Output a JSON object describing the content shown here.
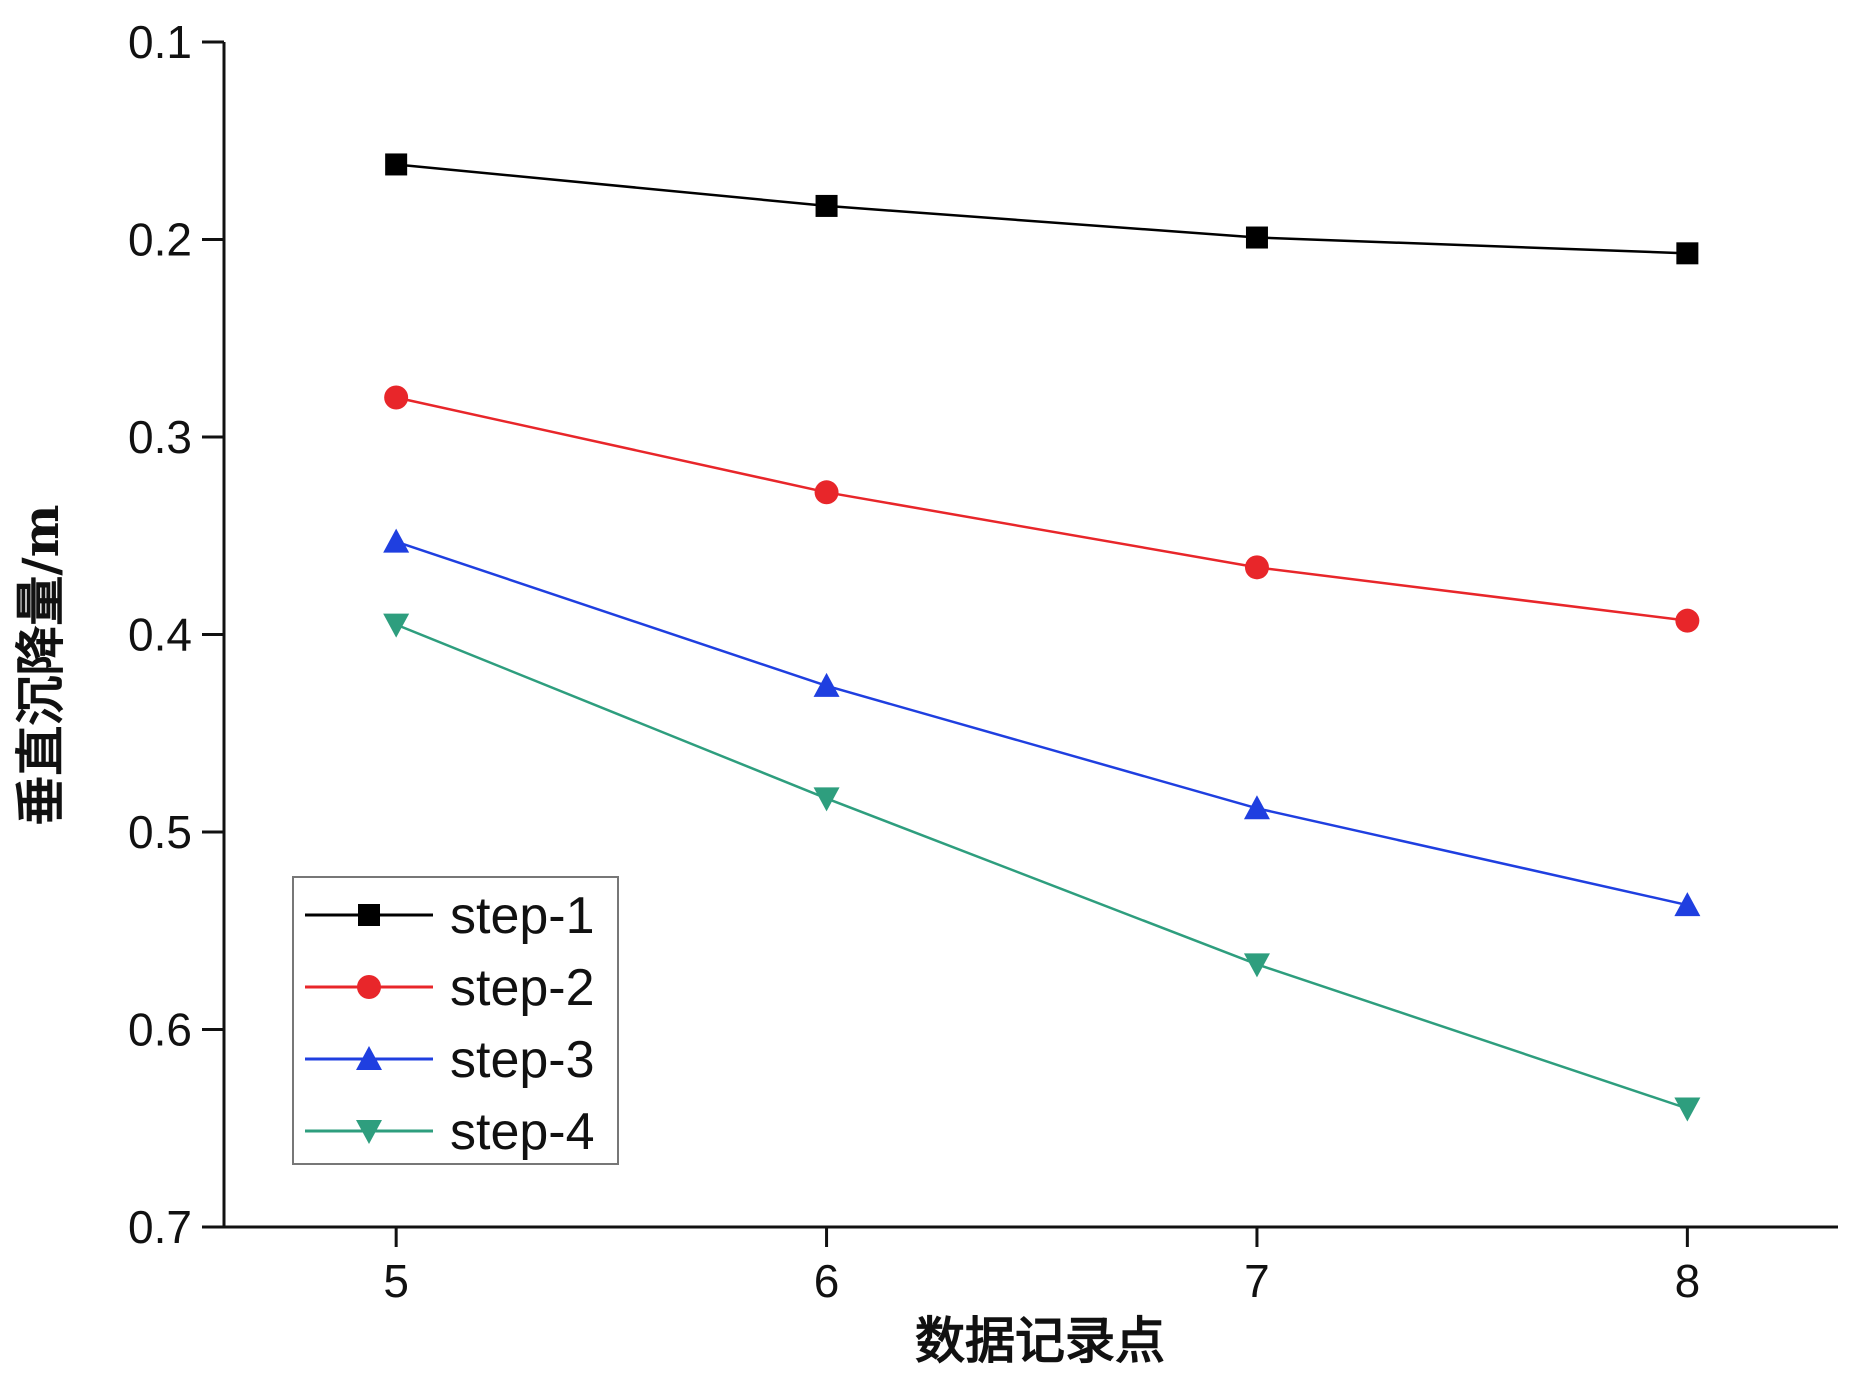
{
  "chart_data": {
    "type": "line",
    "xlabel": "数据记录点",
    "ylabel": "垂直沉降量/m",
    "x": [
      5,
      6,
      7,
      8
    ],
    "xlim": [
      4.6,
      8.35
    ],
    "ylim": [
      0.7,
      0.1
    ],
    "y_inverted": true,
    "xticks": [
      "5",
      "6",
      "7",
      "8"
    ],
    "yticks": [
      "0.1",
      "0.2",
      "0.3",
      "0.4",
      "0.5",
      "0.6",
      "0.7"
    ],
    "legend_position": "bottom-left",
    "grid": false,
    "series": [
      {
        "name": "step-1",
        "color": "#000000",
        "marker": "square",
        "values": [
          0.162,
          0.183,
          0.199,
          0.207
        ]
      },
      {
        "name": "step-2",
        "color": "#e8262a",
        "marker": "circle",
        "values": [
          0.28,
          0.328,
          0.366,
          0.393
        ]
      },
      {
        "name": "step-3",
        "color": "#1f3fe0",
        "marker": "triangle-up",
        "values": [
          0.353,
          0.426,
          0.488,
          0.537
        ]
      },
      {
        "name": "step-4",
        "color": "#2e9e7e",
        "marker": "triangle-down",
        "values": [
          0.395,
          0.483,
          0.567,
          0.64
        ]
      }
    ]
  }
}
